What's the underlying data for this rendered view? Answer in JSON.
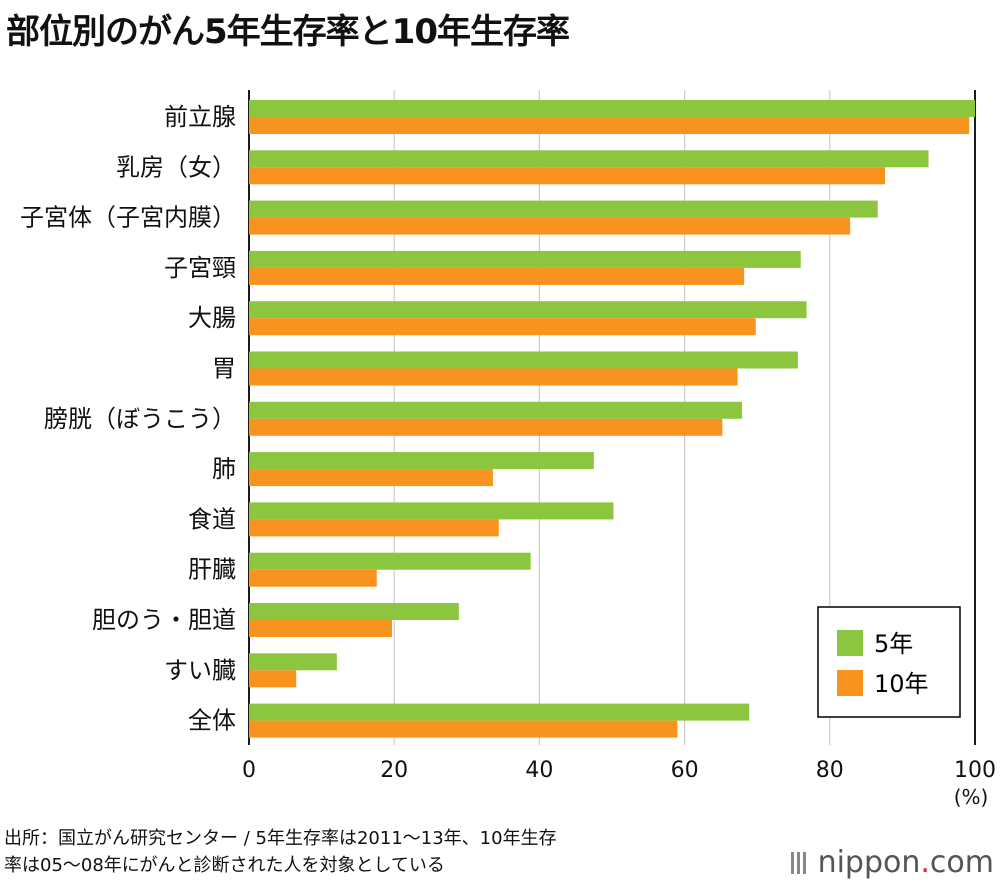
{
  "title": "部位別のがん5年生存率と10年生存率",
  "source_line1": "出所：国立がん研究センター / 5年生存率は2011〜13年、10年生存",
  "source_line2": "率は05〜08年にがんと診断された人を対象としている",
  "logo": {
    "name": "nippon",
    "dot": ".",
    "suffix": "com"
  },
  "colors": {
    "five_year": "#8cc63f",
    "ten_year": "#f7931e",
    "grid": "#cccccc",
    "axis": "#000000"
  },
  "chart_data": {
    "type": "bar",
    "orientation": "horizontal",
    "title": "部位別のがん5年生存率と10年生存率",
    "categories": [
      "前立腺",
      "乳房（女）",
      "子宮体（子宮内膜）",
      "子宮頸",
      "大腸",
      "胃",
      "膀胱（ぼうこう）",
      "肺",
      "食道",
      "肝臓",
      "胆のう・胆道",
      "すい臓",
      "全体"
    ],
    "series": [
      {
        "name": "5年",
        "values": [
          100.0,
          93.6,
          86.6,
          76.0,
          76.8,
          75.6,
          67.9,
          47.5,
          50.2,
          38.8,
          28.9,
          12.1,
          68.9
        ]
      },
      {
        "name": "10年",
        "values": [
          99.2,
          87.6,
          82.8,
          68.2,
          69.8,
          67.3,
          65.2,
          33.6,
          34.4,
          17.6,
          19.7,
          6.5,
          59.0
        ]
      }
    ],
    "xlim": [
      0,
      100
    ],
    "xticks": [
      0,
      20,
      40,
      60,
      80,
      100
    ],
    "xlabel": "(%)",
    "grid": true,
    "legend_position": "bottom-right"
  }
}
